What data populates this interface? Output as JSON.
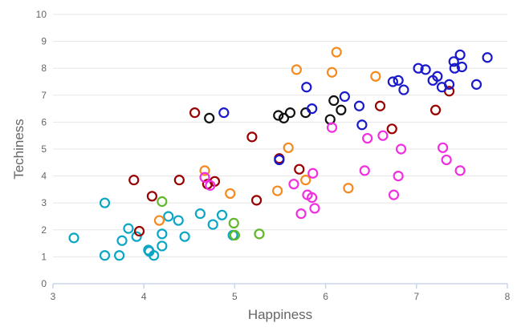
{
  "chart_data": {
    "type": "scatter",
    "xlabel": "Happiness",
    "ylabel": "Techiness",
    "xlim": [
      3,
      8
    ],
    "ylim": [
      0,
      10
    ],
    "x_ticks": [
      "3",
      "4",
      "5",
      "6",
      "7",
      "8"
    ],
    "y_ticks": [
      "0",
      "1",
      "2",
      "3",
      "4",
      "5",
      "6",
      "7",
      "8",
      "9",
      "10"
    ],
    "grid": "horizontal",
    "series": [
      {
        "color": "#0aa6c4",
        "points": [
          [
            3.23,
            1.7
          ],
          [
            3.57,
            1.05
          ],
          [
            3.57,
            3.0
          ],
          [
            3.73,
            1.05
          ],
          [
            3.76,
            1.6
          ],
          [
            3.83,
            2.05
          ],
          [
            3.92,
            1.75
          ],
          [
            4.05,
            1.25
          ],
          [
            4.06,
            1.2
          ],
          [
            4.11,
            1.05
          ],
          [
            4.2,
            1.4
          ],
          [
            4.2,
            1.85
          ],
          [
            4.27,
            2.5
          ],
          [
            4.38,
            2.35
          ],
          [
            4.45,
            1.75
          ],
          [
            4.62,
            2.6
          ],
          [
            4.76,
            2.2
          ],
          [
            4.86,
            2.55
          ],
          [
            4.98,
            1.8
          ]
        ]
      },
      {
        "color": "#62b82a",
        "points": [
          [
            4.2,
            3.05
          ],
          [
            4.99,
            2.25
          ],
          [
            5.0,
            1.8
          ],
          [
            5.27,
            1.85
          ]
        ]
      },
      {
        "color": "#990000",
        "points": [
          [
            3.89,
            3.85
          ],
          [
            3.95,
            1.95
          ],
          [
            4.09,
            3.25
          ],
          [
            4.39,
            3.85
          ],
          [
            4.56,
            6.35
          ],
          [
            4.7,
            3.7
          ],
          [
            4.78,
            3.8
          ],
          [
            5.19,
            5.45
          ],
          [
            5.24,
            3.1
          ],
          [
            5.49,
            4.65
          ],
          [
            5.71,
            4.25
          ],
          [
            6.6,
            6.6
          ],
          [
            6.73,
            5.75
          ],
          [
            7.21,
            6.45
          ],
          [
            7.36,
            7.15
          ]
        ]
      },
      {
        "color": "#111111",
        "points": [
          [
            4.72,
            6.15
          ],
          [
            5.48,
            6.25
          ],
          [
            5.54,
            6.15
          ],
          [
            5.61,
            6.35
          ],
          [
            5.78,
            6.35
          ],
          [
            6.05,
            6.1
          ],
          [
            6.09,
            6.8
          ],
          [
            6.17,
            6.45
          ]
        ]
      },
      {
        "color": "#1a1acc",
        "points": [
          [
            4.88,
            6.35
          ],
          [
            5.49,
            4.6
          ],
          [
            5.79,
            7.3
          ],
          [
            5.85,
            6.5
          ],
          [
            6.21,
            6.95
          ],
          [
            6.37,
            6.6
          ],
          [
            6.4,
            5.9
          ],
          [
            6.74,
            7.5
          ],
          [
            6.8,
            7.55
          ],
          [
            6.86,
            7.2
          ],
          [
            7.02,
            8.0
          ],
          [
            7.1,
            7.95
          ],
          [
            7.18,
            7.55
          ],
          [
            7.23,
            7.7
          ],
          [
            7.28,
            7.3
          ],
          [
            7.36,
            7.4
          ],
          [
            7.41,
            8.25
          ],
          [
            7.42,
            8.0
          ],
          [
            7.48,
            8.5
          ],
          [
            7.5,
            8.05
          ],
          [
            7.66,
            7.4
          ],
          [
            7.78,
            8.4
          ]
        ]
      },
      {
        "color": "#f58a1f",
        "points": [
          [
            4.17,
            2.35
          ],
          [
            4.67,
            4.2
          ],
          [
            4.95,
            3.35
          ],
          [
            5.47,
            3.45
          ],
          [
            5.59,
            5.05
          ],
          [
            5.68,
            7.95
          ],
          [
            5.78,
            3.85
          ],
          [
            6.07,
            7.85
          ],
          [
            6.12,
            8.6
          ],
          [
            6.25,
            3.55
          ],
          [
            6.55,
            7.7
          ]
        ]
      },
      {
        "color": "#f030e0",
        "points": [
          [
            4.67,
            3.95
          ],
          [
            4.73,
            3.65
          ],
          [
            5.65,
            3.7
          ],
          [
            5.73,
            2.6
          ],
          [
            5.8,
            3.3
          ],
          [
            5.85,
            3.2
          ],
          [
            5.86,
            4.1
          ],
          [
            5.88,
            2.8
          ],
          [
            6.07,
            5.8
          ],
          [
            6.43,
            4.2
          ],
          [
            6.46,
            5.4
          ],
          [
            6.63,
            5.5
          ],
          [
            6.75,
            3.3
          ],
          [
            6.8,
            4.0
          ],
          [
            6.83,
            5.0
          ],
          [
            7.29,
            5.05
          ],
          [
            7.33,
            4.6
          ],
          [
            7.48,
            4.2
          ]
        ]
      }
    ]
  }
}
